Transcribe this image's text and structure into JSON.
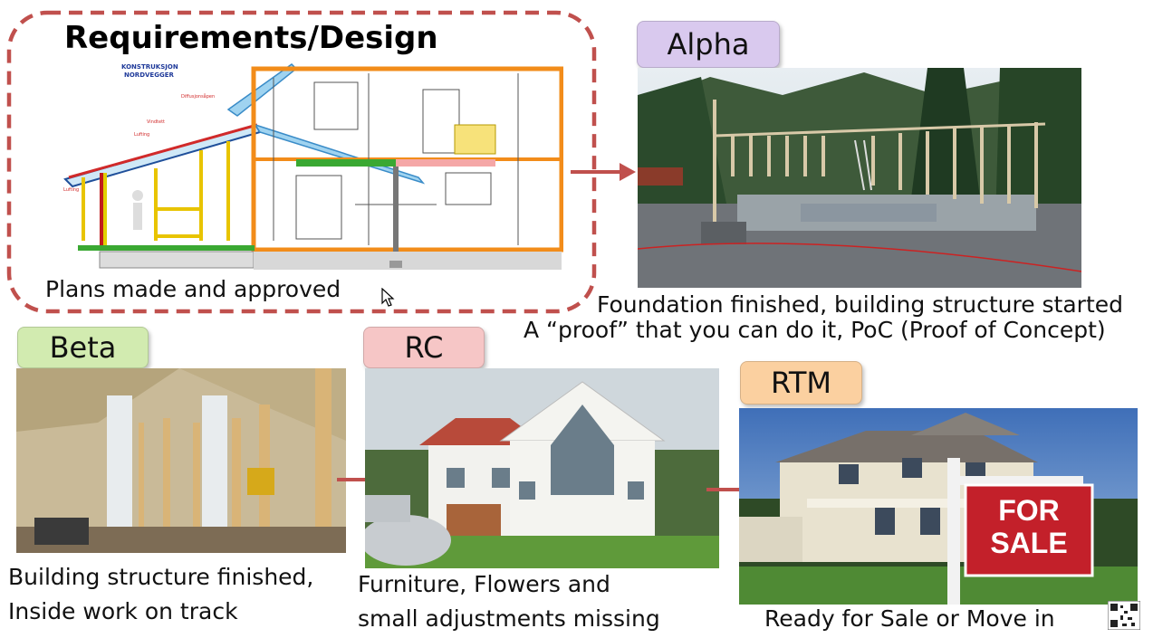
{
  "stages": {
    "design": {
      "title": "Requirements/Design",
      "caption": "Plans made and approved",
      "drawing_title_1": "KONSTRUKSJON",
      "drawing_title_2": "NORDVEGGER"
    },
    "alpha": {
      "label": "Alpha",
      "caption_1": "Foundation finished, building structure started",
      "caption_2": "A “proof” that you can do it, PoC (Proof of Concept)"
    },
    "beta": {
      "label": "Beta",
      "caption_1": "Building structure finished,",
      "caption_2": "Inside work on track"
    },
    "rc": {
      "label": "RC",
      "caption_1": "Furniture, Flowers and",
      "caption_2": "small adjustments missing"
    },
    "rtm": {
      "label": "RTM",
      "caption": "Ready for Sale or Move in",
      "sign_line_1": "FOR",
      "sign_line_2": "SALE"
    }
  },
  "colors": {
    "dashed_border": "#c0504d",
    "arrow": "#c0504d",
    "alpha_badge": "#d9c9ee",
    "beta_badge": "#d2ebb0",
    "rc_badge": "#f6c6c6",
    "rtm_badge": "#fbd0a0"
  },
  "icons": [
    "mouse-cursor-icon",
    "qr-code-icon"
  ]
}
